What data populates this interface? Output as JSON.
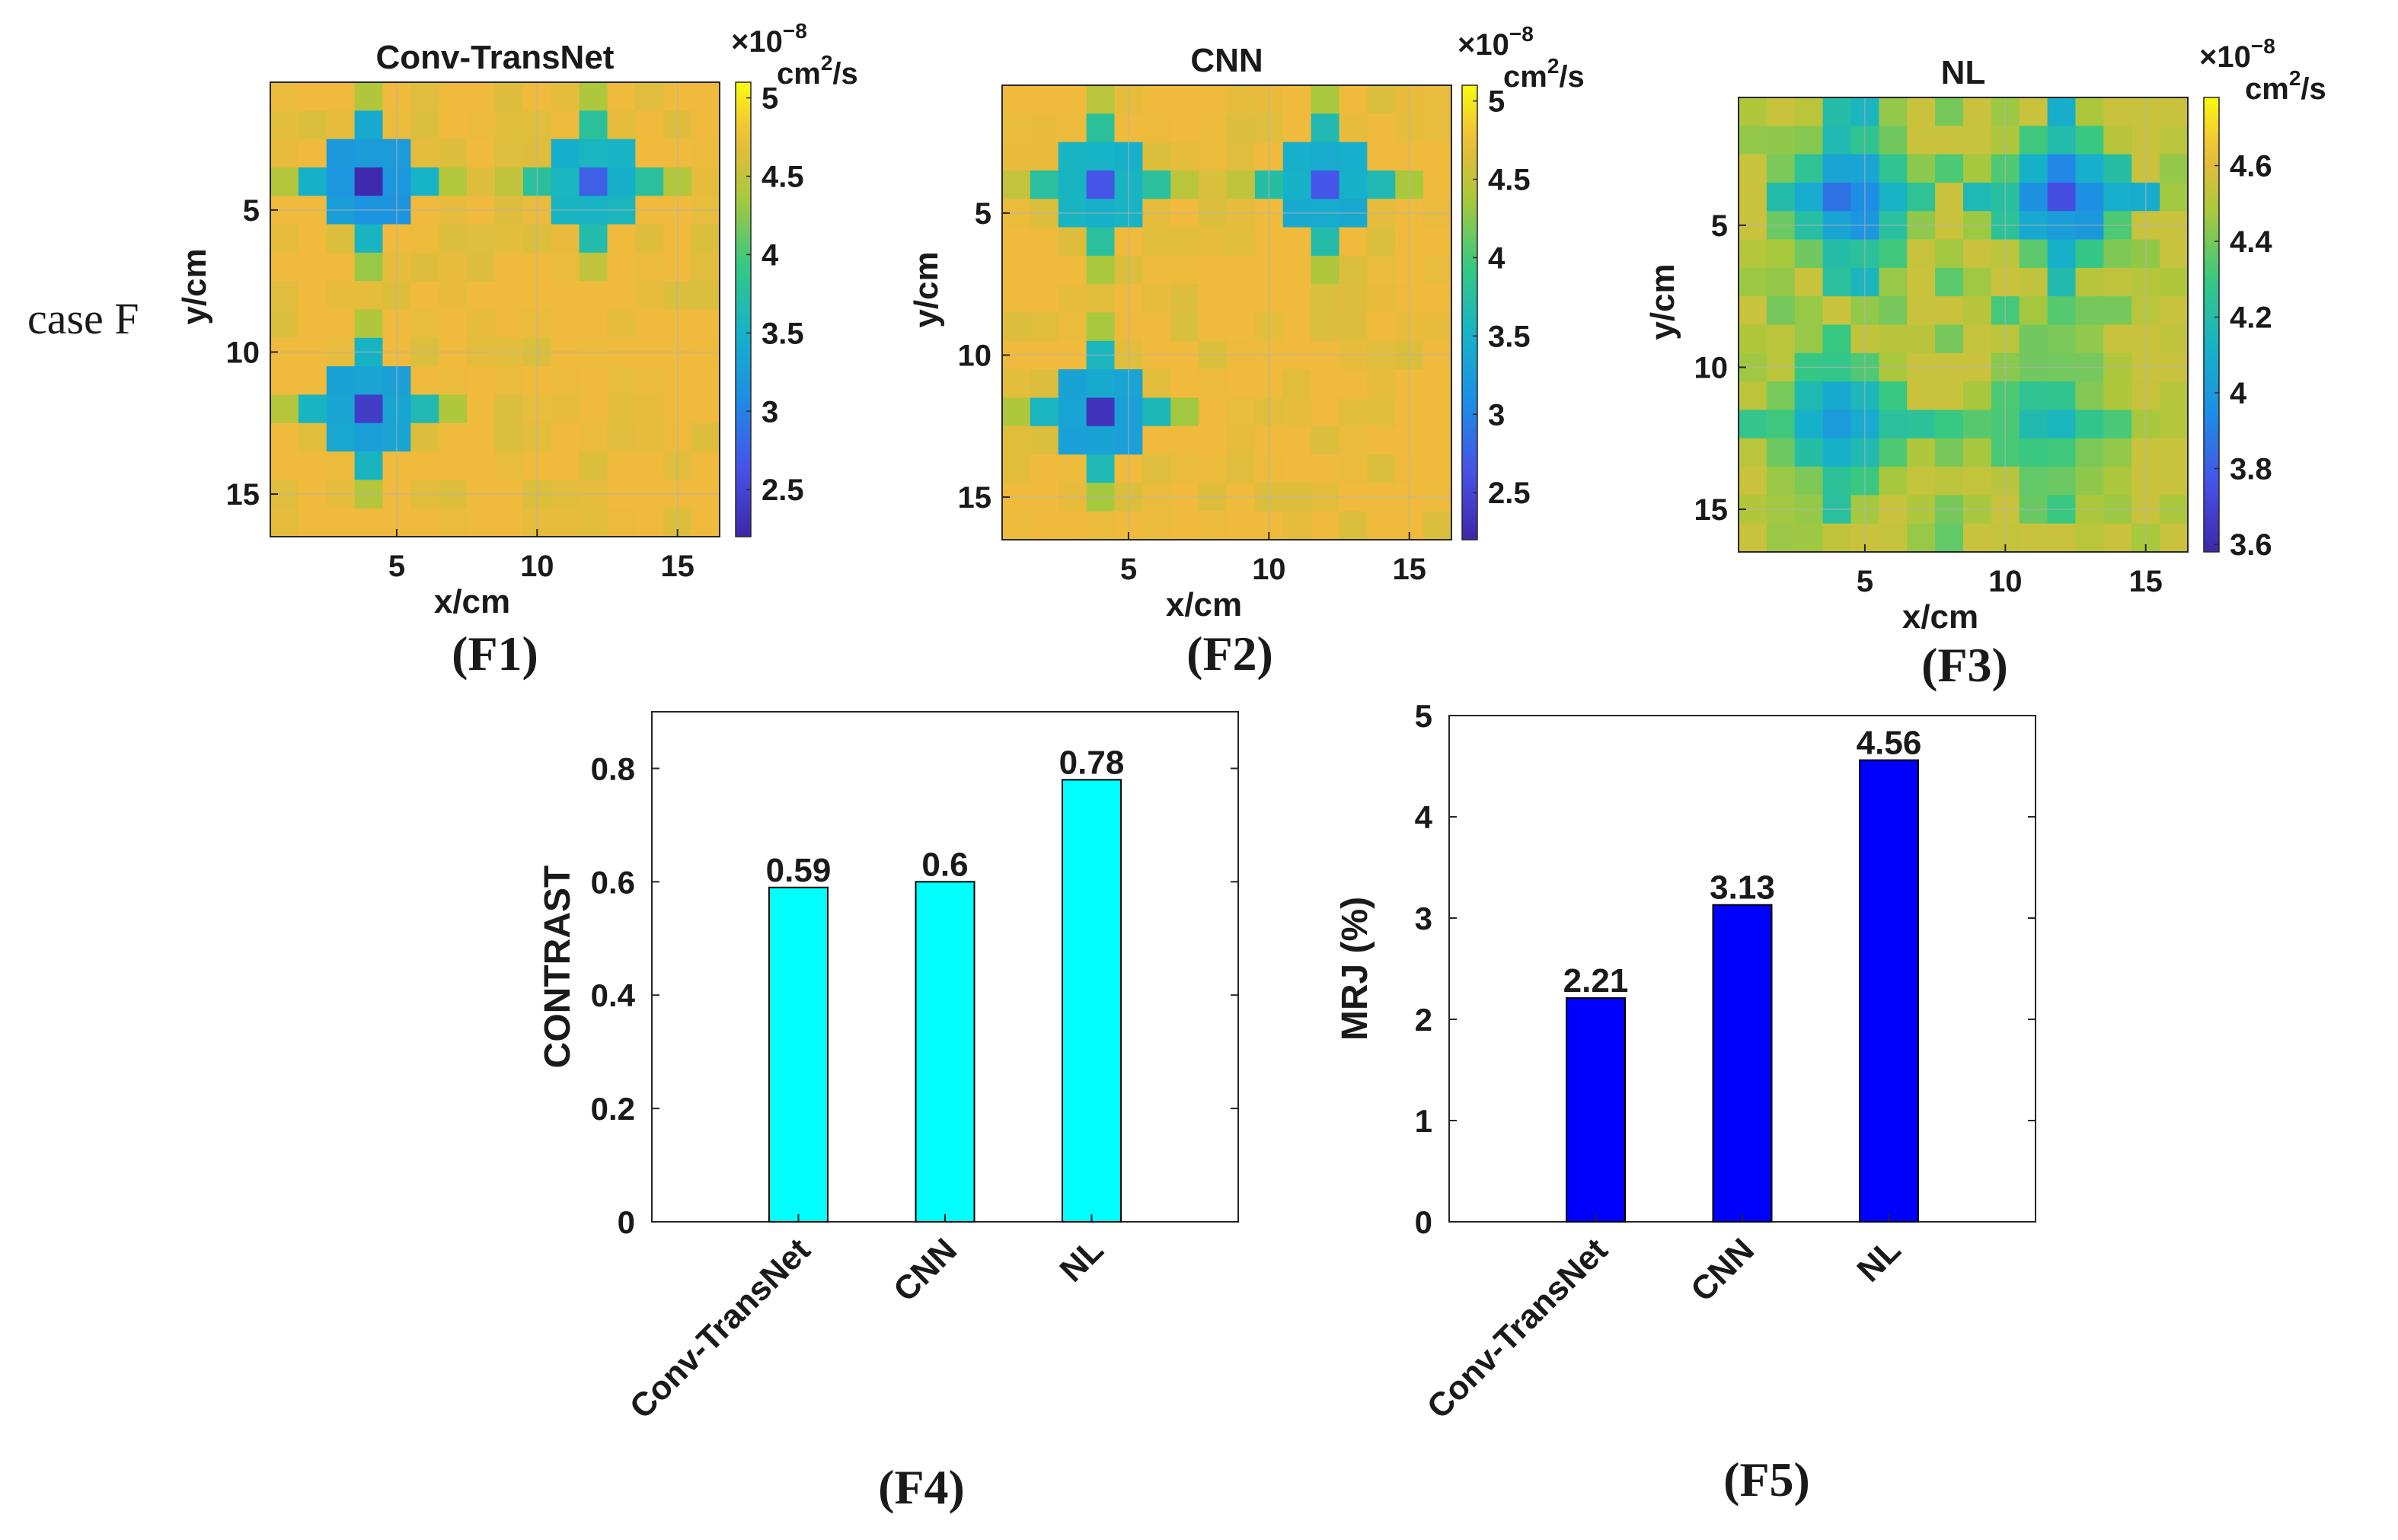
{
  "row_label": "case F",
  "colors": {
    "contrast_bar": "#00ffff",
    "mrj_bar": "#0000ff",
    "axis": "#262626",
    "grid": "#b4b4b4"
  },
  "chart_data": [
    {
      "id": "F1",
      "type": "heatmap",
      "panel_label": "(F1)",
      "title": "Conv-TransNet",
      "xlabel": "x/cm",
      "ylabel": "y/cm",
      "x_ticks": [
        "5",
        "10",
        "15"
      ],
      "y_ticks": [
        "5",
        "10",
        "15"
      ],
      "xlim": [
        0.5,
        16.5
      ],
      "ylim": [
        0.5,
        16.5
      ],
      "grid": true,
      "colormap": "parula",
      "colorbar_exponent": "×10",
      "colorbar_exponent_power": "−8",
      "colorbar_unit": "cm",
      "colorbar_unit_power": "2",
      "colorbar_unit_suffix": "/s",
      "colorbar_ticks": [
        "5",
        "4.5",
        "4",
        "3.5",
        "3",
        "2.5"
      ],
      "clim": [
        2.2,
        5.1
      ],
      "background_value": 4.75,
      "inclusions": [
        {
          "cx": 4,
          "cy": 4,
          "min": 2.2
        },
        {
          "cx": 12,
          "cy": 4,
          "min": 2.7
        },
        {
          "cx": 4,
          "cy": 12,
          "min": 2.4
        }
      ]
    },
    {
      "id": "F2",
      "type": "heatmap",
      "panel_label": "(F2)",
      "title": "CNN",
      "xlabel": "x/cm",
      "ylabel": "y/cm",
      "x_ticks": [
        "5",
        "10",
        "15"
      ],
      "y_ticks": [
        "5",
        "10",
        "15"
      ],
      "xlim": [
        0.5,
        16.5
      ],
      "ylim": [
        0.5,
        16.5
      ],
      "grid": true,
      "colormap": "parula",
      "colorbar_exponent": "×10",
      "colorbar_exponent_power": "−8",
      "colorbar_unit": "cm",
      "colorbar_unit_power": "2",
      "colorbar_unit_suffix": "/s",
      "colorbar_ticks": [
        "5",
        "4.5",
        "4",
        "3.5",
        "3",
        "2.5"
      ],
      "clim": [
        2.2,
        5.1
      ],
      "background_value": 4.75,
      "inclusions": [
        {
          "cx": 4,
          "cy": 4,
          "min": 2.7
        },
        {
          "cx": 12,
          "cy": 4,
          "min": 2.6
        },
        {
          "cx": 4,
          "cy": 12,
          "min": 2.4
        }
      ]
    },
    {
      "id": "F3",
      "type": "heatmap",
      "panel_label": "(F3)",
      "title": "NL",
      "xlabel": "x/cm",
      "ylabel": "y/cm",
      "x_ticks": [
        "5",
        "10",
        "15"
      ],
      "y_ticks": [
        "5",
        "10",
        "15"
      ],
      "xlim": [
        0.5,
        16.5
      ],
      "ylim": [
        0.5,
        16.5
      ],
      "grid": true,
      "colormap": "parula",
      "colorbar_exponent": "×10",
      "colorbar_exponent_power": "−8",
      "colorbar_unit": "cm",
      "colorbar_unit_power": "2",
      "colorbar_unit_suffix": "/s",
      "colorbar_ticks": [
        "4.6",
        "4.4",
        "4.2",
        "4",
        "3.8",
        "3.6"
      ],
      "clim": [
        3.58,
        4.78
      ],
      "background_value": 4.55,
      "inclusions": [
        {
          "cx": 4.5,
          "cy": 4,
          "min": 3.8
        },
        {
          "cx": 12,
          "cy": 4,
          "min": 3.68
        },
        {
          "cx": 4,
          "cy": 12,
          "min": 3.95
        },
        {
          "cx": 11.5,
          "cy": 12,
          "min": 4.15
        }
      ]
    },
    {
      "id": "F4",
      "type": "bar",
      "panel_label": "(F4)",
      "title": "",
      "xlabel": "",
      "ylabel": "CONTRAST",
      "categories": [
        "Conv-TransNet",
        "CNN",
        "NL"
      ],
      "values": [
        0.59,
        0.6,
        0.78
      ],
      "data_labels": [
        "0.59",
        "0.6",
        "0.78"
      ],
      "ylim": [
        0,
        0.9
      ],
      "y_ticks": [
        0,
        0.2,
        0.4,
        0.6,
        0.8
      ],
      "y_tick_labels": [
        "0",
        "0.2",
        "0.4",
        "0.6",
        "0.8"
      ],
      "grid": false
    },
    {
      "id": "F5",
      "type": "bar",
      "panel_label": "(F5)",
      "title": "",
      "xlabel": "",
      "ylabel": "MRJ (%)",
      "categories": [
        "Conv-TransNet",
        "CNN",
        "NL"
      ],
      "values": [
        2.21,
        3.13,
        4.56
      ],
      "data_labels": [
        "2.21",
        "3.13",
        "4.56"
      ],
      "ylim": [
        0,
        5
      ],
      "y_ticks": [
        0,
        1,
        2,
        3,
        4,
        5
      ],
      "y_tick_labels": [
        "0",
        "1",
        "2",
        "3",
        "4",
        "5"
      ],
      "grid": false
    }
  ]
}
